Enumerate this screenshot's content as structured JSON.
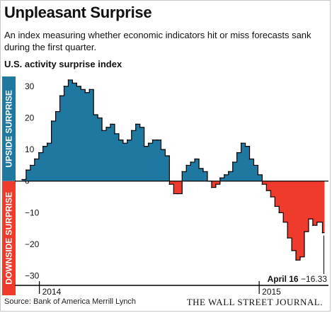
{
  "title": "Unpleasant Surprise",
  "subtitle": "An index measuring whether economic indicators hit or miss forecasts sank during the first quarter.",
  "chart_heading": "U.S. activity surprise index",
  "source": "Source: Bank of America Merrill Lynch",
  "publisher": "THE WALL STREET JOURNAL.",
  "chart_data": {
    "type": "area",
    "title": "U.S. activity surprise index",
    "y_label_positive": "UPSIDE SURPRISE",
    "y_label_negative": "DOWNSIDE SURPRISE",
    "ylim": [
      -33,
      34
    ],
    "yticks": [
      30,
      20,
      10,
      0,
      -10,
      -20,
      -30
    ],
    "x_tick_labels": [
      {
        "label": "2014",
        "date": "2014-01"
      },
      {
        "label": "2015",
        "date": "2015-01"
      }
    ],
    "annotation": {
      "label": "April 16",
      "value": "−16.33"
    },
    "colors": {
      "positive": "#1f78a0",
      "negative": "#ef3b2c",
      "axis": "#000000"
    },
    "x": [
      "2013-12-03",
      "2013-12-10",
      "2013-12-17",
      "2013-12-24",
      "2013-12-31",
      "2014-01-07",
      "2014-01-14",
      "2014-01-21",
      "2014-01-28",
      "2014-02-04",
      "2014-02-11",
      "2014-02-18",
      "2014-02-25",
      "2014-03-04",
      "2014-03-11",
      "2014-03-18",
      "2014-03-25",
      "2014-04-01",
      "2014-04-08",
      "2014-04-15",
      "2014-04-22",
      "2014-04-29",
      "2014-05-06",
      "2014-05-13",
      "2014-05-20",
      "2014-05-27",
      "2014-06-03",
      "2014-06-10",
      "2014-06-17",
      "2014-06-24",
      "2014-07-01",
      "2014-07-08",
      "2014-07-15",
      "2014-07-22",
      "2014-07-29",
      "2014-08-05",
      "2014-08-12",
      "2014-08-19",
      "2014-08-26",
      "2014-09-02",
      "2014-09-09",
      "2014-09-16",
      "2014-09-23",
      "2014-09-30",
      "2014-10-07",
      "2014-10-14",
      "2014-10-21",
      "2014-10-28",
      "2014-11-04",
      "2014-11-11",
      "2014-11-18",
      "2014-11-25",
      "2014-12-02",
      "2014-12-09",
      "2014-12-16",
      "2014-12-23",
      "2014-12-30",
      "2015-01-06",
      "2015-01-13",
      "2015-01-20",
      "2015-01-27",
      "2015-02-03",
      "2015-02-10",
      "2015-02-17",
      "2015-02-24",
      "2015-03-03",
      "2015-03-10",
      "2015-03-17",
      "2015-03-24",
      "2015-03-31",
      "2015-04-07",
      "2015-04-16"
    ],
    "values": [
      0.5,
      3.5,
      5,
      7,
      9,
      11,
      12,
      19,
      22,
      27,
      30,
      32,
      31,
      30,
      29,
      28,
      29,
      21,
      20,
      16,
      17,
      18,
      15,
      13,
      12,
      13,
      16,
      18,
      17,
      11,
      12,
      13,
      13,
      10,
      8,
      -1,
      -4,
      -4,
      3,
      5,
      6,
      7,
      4,
      3,
      0,
      -2,
      -1,
      1,
      2,
      3,
      6,
      9,
      12,
      11,
      7,
      5,
      2,
      -1,
      -3,
      -5,
      -8,
      -10,
      -13,
      -18,
      -22,
      -25,
      -24,
      -16,
      -12,
      -14,
      -13,
      -16.33
    ]
  }
}
